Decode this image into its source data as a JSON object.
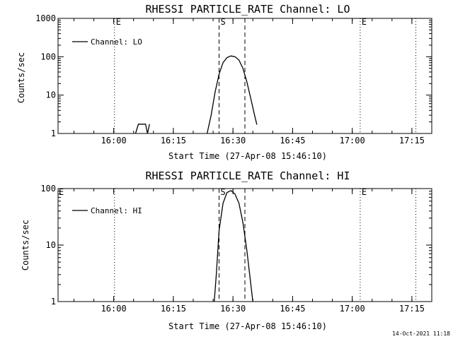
{
  "chart_data": [
    {
      "type": "line",
      "title": "RHESSI PARTICLE_RATE Channel: LO",
      "xlabel": "Start Time (27-Apr-08 15:46:10)",
      "ylabel": "Counts/sec",
      "yscale": "log",
      "ylim": [
        1,
        1000
      ],
      "y_ticks": [
        {
          "value": 1,
          "label": "1"
        },
        {
          "value": 10,
          "label": "10"
        },
        {
          "value": 100,
          "label": "100"
        },
        {
          "value": 1000,
          "label": "1000"
        }
      ],
      "xlim_minutes_after_1546": [
        0,
        94
      ],
      "x_ticks": [
        {
          "minutes": 14,
          "label": "16:00"
        },
        {
          "minutes": 29,
          "label": "16:15"
        },
        {
          "minutes": 44,
          "label": "16:30"
        },
        {
          "minutes": 59,
          "label": "16:45"
        },
        {
          "minutes": 74,
          "label": "17:00"
        },
        {
          "minutes": 89,
          "label": "17:15"
        }
      ],
      "legend": {
        "label": "Channel: LO",
        "position": "top-left"
      },
      "series": [
        {
          "name": "Channel: LO",
          "segments": [
            {
              "x": [
                19.5,
                20.2,
                22.0,
                22.5,
                23.0
              ],
              "y": [
                1.0,
                1.75,
                1.75,
                1.0,
                1.75
              ]
            },
            {
              "x": [
                37.5,
                38.5,
                39.5,
                40.5,
                41.5,
                42.5,
                43.5,
                44.5,
                45.5,
                46.5,
                47.5,
                48.5,
                49.5,
                50.0
              ],
              "y": [
                1.0,
                3.0,
                12.0,
                35.0,
                70.0,
                95.0,
                105.0,
                100.0,
                82.0,
                50.0,
                22.0,
                8.0,
                2.8,
                1.7
              ]
            }
          ]
        }
      ],
      "vertical_markers": [
        {
          "minutes": 14.2,
          "style": "dotted",
          "label": "E"
        },
        {
          "minutes": 40.5,
          "style": "dashed",
          "label": "S"
        },
        {
          "minutes": 47.0,
          "style": "dashed",
          "label": ""
        },
        {
          "minutes": 76.0,
          "style": "dotted",
          "label": "E"
        },
        {
          "minutes": 90.0,
          "style": "dotted",
          "label": ""
        }
      ]
    },
    {
      "type": "line",
      "title": "RHESSI PARTICLE_RATE Channel: HI",
      "xlabel": "Start Time (27-Apr-08 15:46:10)",
      "ylabel": "Counts/sec",
      "yscale": "log",
      "ylim": [
        1,
        100
      ],
      "y_ticks": [
        {
          "value": 1,
          "label": "1"
        },
        {
          "value": 10,
          "label": "10"
        },
        {
          "value": 100,
          "label": "100"
        }
      ],
      "xlim_minutes_after_1546": [
        0,
        94
      ],
      "x_ticks": [
        {
          "minutes": 14,
          "label": "16:00"
        },
        {
          "minutes": 29,
          "label": "16:15"
        },
        {
          "minutes": 44,
          "label": "16:30"
        },
        {
          "minutes": 59,
          "label": "16:45"
        },
        {
          "minutes": 74,
          "label": "17:00"
        },
        {
          "minutes": 89,
          "label": "17:15"
        }
      ],
      "legend": {
        "label": "Channel: HI",
        "position": "top-left"
      },
      "series": [
        {
          "name": "Channel: HI",
          "segments": [
            {
              "x": [
                39.3,
                39.8,
                40.5,
                41.5,
                42.5,
                43.5,
                44.5,
                45.5,
                46.5,
                47.5,
                48.5,
                49.0
              ],
              "y": [
                1.0,
                3.0,
                18.0,
                55.0,
                85.0,
                92.0,
                80.0,
                55.0,
                25.0,
                8.0,
                2.0,
                1.0
              ]
            }
          ]
        }
      ],
      "vertical_markers": [
        {
          "minutes": 14.2,
          "style": "dotted",
          "label": ""
        },
        {
          "minutes": 40.5,
          "style": "dashed",
          "label": "S"
        },
        {
          "minutes": 47.0,
          "style": "dashed",
          "label": ""
        },
        {
          "minutes": 76.0,
          "style": "dotted",
          "label": "E"
        },
        {
          "minutes": 90.0,
          "style": "dotted",
          "label": ""
        }
      ],
      "left_edge_label": "E"
    }
  ],
  "timestamp": "14-Oct-2021 11:18"
}
